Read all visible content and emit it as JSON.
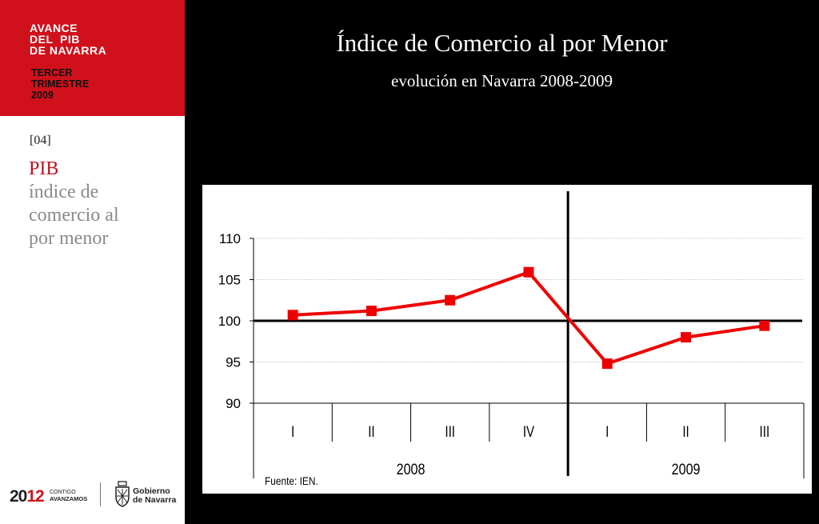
{
  "header": {
    "line1": "AVANCE",
    "line2": "DEL  PIB",
    "line3": "DE NAVARRA",
    "sub1": "TERCER",
    "sub2": "TRIMESTRE",
    "sub3": "2009"
  },
  "section": {
    "number": "[04]",
    "title": "PIB",
    "sub1": "índice de",
    "sub2": "comercio al",
    "sub3": "por menor"
  },
  "footer": {
    "year_a": "20",
    "year_b": "12",
    "tag1": "CONTIGO",
    "tag2": "AVANZAMOS",
    "gob1": "Gobierno",
    "gob2": "de Navarra"
  },
  "colors": {
    "accent": "#d0111b",
    "series": "#ee0000"
  },
  "chart_data": {
    "type": "line",
    "title": "Índice de Comercio al por Menor",
    "subtitle": "evolución en Navarra 2008-2009",
    "categories": [
      "I",
      "II",
      "III",
      "IV",
      "I",
      "II",
      "III"
    ],
    "groups": [
      {
        "label": "2008",
        "span": 4
      },
      {
        "label": "2009",
        "span": 3
      }
    ],
    "series": [
      {
        "values": [
          100.7,
          101.2,
          102.5,
          105.9,
          94.8,
          98.0,
          99.4
        ]
      }
    ],
    "ylim": [
      90,
      110
    ],
    "yticks": [
      110,
      105,
      100,
      95,
      90
    ],
    "reference_line": 100,
    "grid": true,
    "source": "Fuente: IEN."
  }
}
